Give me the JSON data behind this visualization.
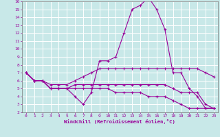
{
  "bg_color": "#c8e8e8",
  "grid_color": "#b0d8d8",
  "line_color": "#990099",
  "xlabel": "Windchill (Refroidissement éolien,°C)",
  "xlim": [
    -0.5,
    23.5
  ],
  "ylim": [
    2,
    16
  ],
  "xticks": [
    0,
    1,
    2,
    3,
    4,
    5,
    6,
    7,
    8,
    9,
    10,
    11,
    12,
    13,
    14,
    15,
    16,
    17,
    18,
    19,
    20,
    21,
    22,
    23
  ],
  "yticks": [
    2,
    3,
    4,
    5,
    6,
    7,
    8,
    9,
    10,
    11,
    12,
    13,
    14,
    15,
    16
  ],
  "line1_x": [
    0,
    1,
    2,
    3,
    4,
    5,
    6,
    7,
    8,
    9,
    10,
    11,
    12,
    13,
    14,
    15,
    16,
    17,
    18,
    19,
    20,
    21,
    22,
    23
  ],
  "line1_y": [
    7.0,
    6.0,
    6.0,
    5.0,
    5.0,
    5.0,
    4.0,
    3.0,
    4.5,
    8.5,
    8.5,
    9.0,
    12.0,
    15.0,
    15.5,
    16.5,
    15.0,
    12.5,
    7.0,
    7.0,
    5.0,
    4.0,
    2.5,
    2.5
  ],
  "line2_x": [
    0,
    1,
    2,
    3,
    4,
    5,
    6,
    7,
    8,
    9,
    10,
    11,
    12,
    13,
    14,
    15,
    16,
    17,
    18,
    19,
    20,
    21,
    22,
    23
  ],
  "line2_y": [
    7.0,
    6.0,
    6.0,
    5.5,
    5.5,
    5.5,
    6.0,
    6.5,
    7.0,
    7.5,
    7.5,
    7.5,
    7.5,
    7.5,
    7.5,
    7.5,
    7.5,
    7.5,
    7.5,
    7.5,
    7.5,
    7.5,
    7.0,
    6.5
  ],
  "line3_x": [
    0,
    1,
    2,
    3,
    4,
    5,
    6,
    7,
    8,
    9,
    10,
    11,
    12,
    13,
    14,
    15,
    16,
    17,
    18,
    19,
    20,
    21,
    22,
    23
  ],
  "line3_y": [
    7.0,
    6.0,
    6.0,
    5.0,
    5.0,
    5.0,
    5.5,
    5.5,
    5.5,
    5.5,
    5.5,
    5.5,
    5.5,
    5.5,
    5.5,
    5.5,
    5.5,
    5.5,
    5.0,
    4.5,
    4.5,
    4.5,
    3.0,
    2.5
  ],
  "line4_x": [
    0,
    1,
    2,
    3,
    4,
    5,
    6,
    7,
    8,
    9,
    10,
    11,
    12,
    13,
    14,
    15,
    16,
    17,
    18,
    19,
    20,
    21,
    22,
    23
  ],
  "line4_y": [
    7.0,
    6.0,
    6.0,
    5.0,
    5.0,
    5.0,
    5.0,
    5.0,
    5.0,
    5.0,
    5.0,
    4.5,
    4.5,
    4.5,
    4.5,
    4.0,
    4.0,
    4.0,
    3.5,
    3.0,
    2.5,
    2.5,
    2.5,
    2.5
  ]
}
